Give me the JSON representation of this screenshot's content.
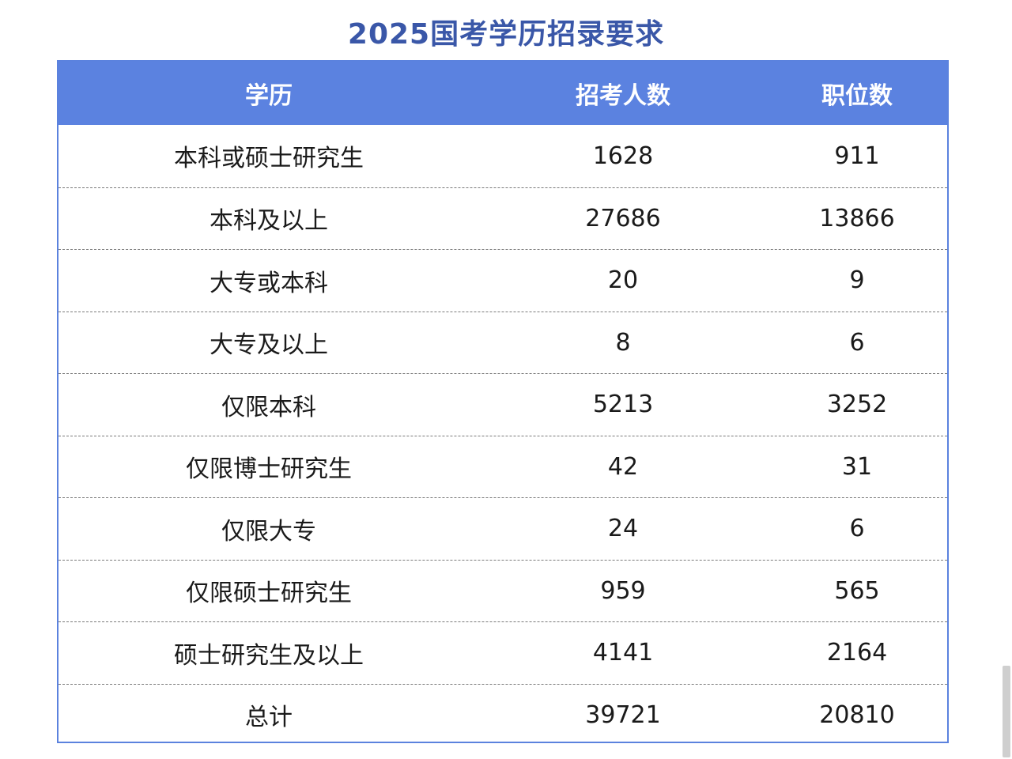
{
  "title": "2025国考学历招录要求",
  "table": {
    "headers": [
      "学历",
      "招考人数",
      "职位数"
    ],
    "rows": [
      [
        "本科或硕士研究生",
        "1628",
        "911"
      ],
      [
        "本科及以上",
        "27686",
        "13866"
      ],
      [
        "大专或本科",
        "20",
        "9"
      ],
      [
        "大专及以上",
        "8",
        "6"
      ],
      [
        "仅限本科",
        "5213",
        "3252"
      ],
      [
        "仅限博士研究生",
        "42",
        "31"
      ],
      [
        "仅限大专",
        "24",
        "6"
      ],
      [
        "仅限硕士研究生",
        "959",
        "565"
      ],
      [
        "硕士研究生及以上",
        "4141",
        "2164"
      ],
      [
        "总计",
        "39721",
        "20810"
      ]
    ]
  },
  "colors": {
    "title": "#3a57a8",
    "header_bg": "#5b82e0",
    "header_text": "#ffffff",
    "border": "#5b82de"
  }
}
